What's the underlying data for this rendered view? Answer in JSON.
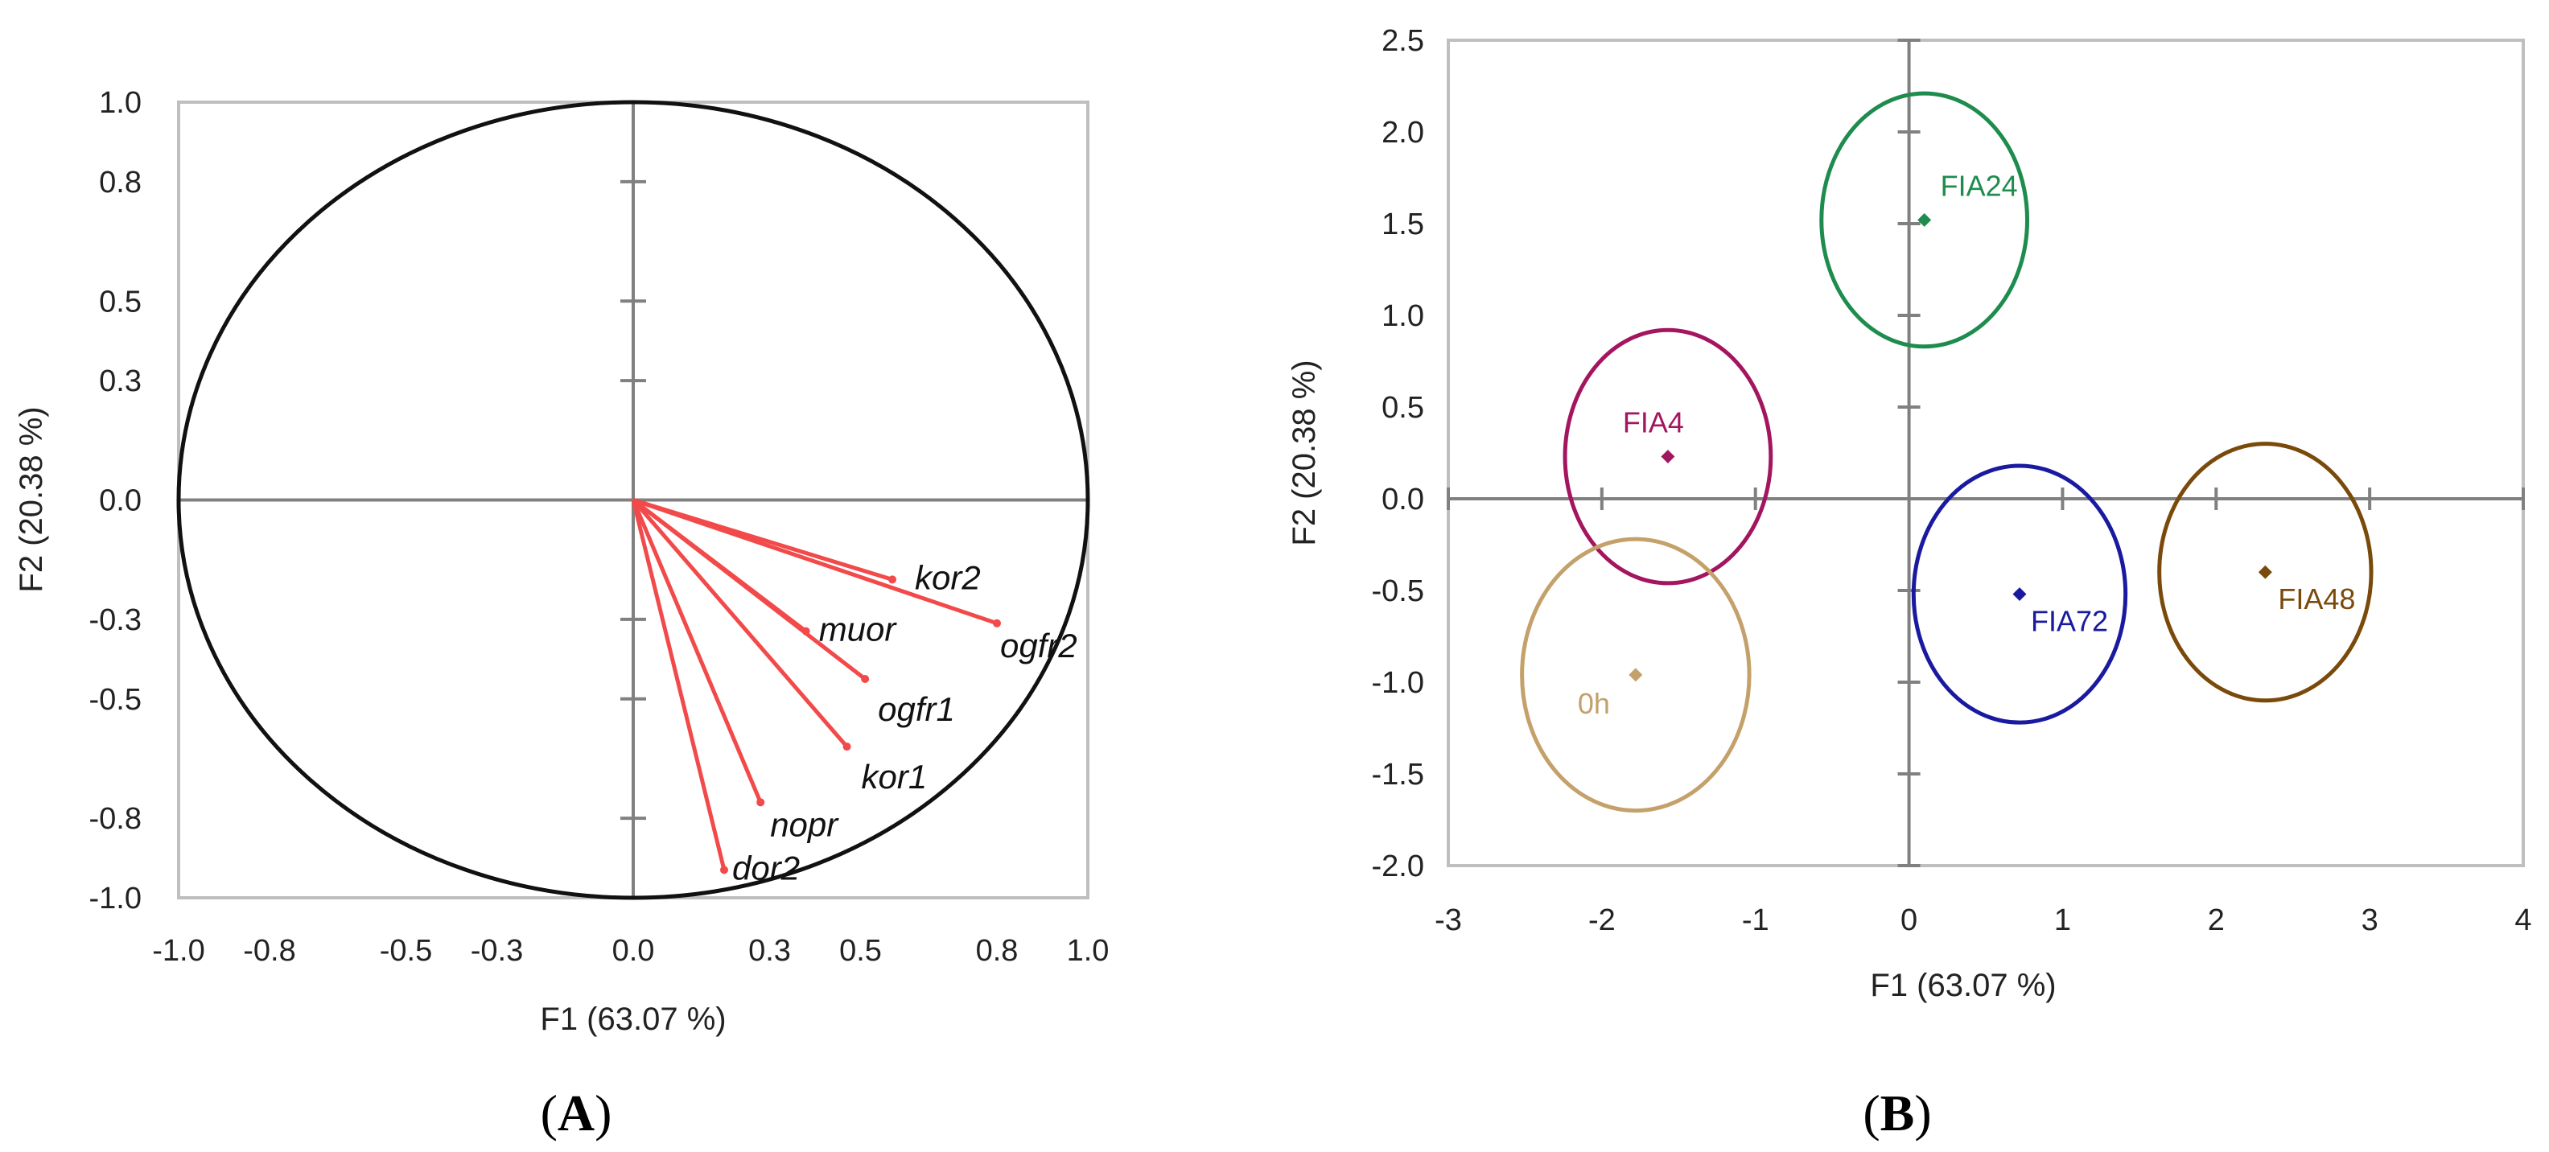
{
  "chart_data": [
    {
      "type": "scatter",
      "panel": "A",
      "panel_label": {
        "open": "(",
        "letter": "A",
        "close": ")"
      },
      "title": "",
      "xlabel": "F1 (63.07 %)",
      "ylabel": "F2 (20.38 %)",
      "xlim": [
        -1.0,
        1.0
      ],
      "ylim": [
        -1.0,
        1.0
      ],
      "xticks": [
        -1.0,
        -0.8,
        -0.5,
        -0.3,
        0.0,
        0.3,
        0.5,
        0.8,
        1.0
      ],
      "xtick_labels": [
        "-1.0",
        "-0.8",
        "-0.5",
        "-0.3",
        "0.0",
        "0.3",
        "0.5",
        "0.8",
        "1.0"
      ],
      "yticks": [
        -1.0,
        -0.8,
        -0.5,
        -0.3,
        0.0,
        0.3,
        0.5,
        0.8,
        1.0
      ],
      "ytick_labels": [
        "-1.0",
        "-0.8",
        "-0.5",
        "-0.3",
        "0.0",
        "0.3",
        "0.5",
        "0.8",
        "1.0"
      ],
      "circle_radius": 1.0,
      "vector_color": "#f24a4a",
      "circle_color": "#111111",
      "vectors": [
        {
          "name": "kor2",
          "x": 0.57,
          "y": -0.2
        },
        {
          "name": "ogfr2",
          "x": 0.8,
          "y": -0.31
        },
        {
          "name": "muor",
          "x": 0.38,
          "y": -0.33
        },
        {
          "name": "ogfr1",
          "x": 0.51,
          "y": -0.45
        },
        {
          "name": "kor1",
          "x": 0.47,
          "y": -0.62
        },
        {
          "name": "nopr",
          "x": 0.28,
          "y": -0.76
        },
        {
          "name": "dor2",
          "x": 0.2,
          "y": -0.93
        }
      ]
    },
    {
      "type": "scatter",
      "panel": "B",
      "panel_label": {
        "open": "(",
        "letter": "B",
        "close": ")"
      },
      "title": "",
      "xlabel": "F1 (63.07 %)",
      "ylabel": "F2 (20.38 %)",
      "xlim": [
        -3,
        4
      ],
      "ylim": [
        -2.0,
        2.5
      ],
      "xticks": [
        -3,
        -2,
        -1,
        0,
        1,
        2,
        3,
        4
      ],
      "xtick_labels": [
        "-3",
        "-2",
        "-1",
        "0",
        "1",
        "2",
        "3",
        "4"
      ],
      "yticks": [
        -2.0,
        -1.5,
        -1.0,
        -0.5,
        0.0,
        0.5,
        1.0,
        1.5,
        2.0,
        2.5
      ],
      "ytick_labels": [
        "-2.0",
        "-1.5",
        "-1.0",
        "-0.5",
        "0.0",
        "0.5",
        "1.0",
        "1.5",
        "2.0",
        "2.5"
      ],
      "groups": [
        {
          "name": "FIA24",
          "x": 0.1,
          "y": 1.52,
          "rx": 0.67,
          "ry": 0.69,
          "color": "#1e8c4e"
        },
        {
          "name": "FIA4",
          "x": -1.57,
          "y": 0.23,
          "rx": 0.67,
          "ry": 0.69,
          "color": "#a3165f"
        },
        {
          "name": "0h",
          "x": -1.78,
          "y": -0.96,
          "rx": 0.74,
          "ry": 0.74,
          "color": "#c4a06a"
        },
        {
          "name": "FIA72",
          "x": 0.72,
          "y": -0.52,
          "rx": 0.69,
          "ry": 0.7,
          "color": "#1a1aa0"
        },
        {
          "name": "FIA48",
          "x": 2.32,
          "y": -0.4,
          "rx": 0.69,
          "ry": 0.7,
          "color": "#7a4a0a"
        }
      ]
    }
  ]
}
